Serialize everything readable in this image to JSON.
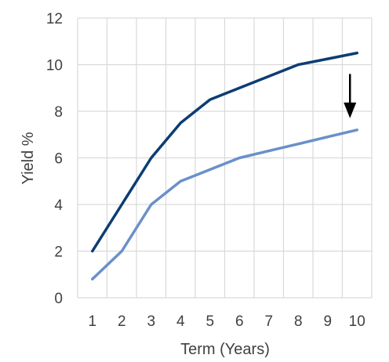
{
  "chart_data": {
    "type": "line",
    "x": [
      1,
      2,
      3,
      4,
      5,
      6,
      7,
      8,
      9,
      10
    ],
    "xlabel": "Term (Years)",
    "ylabel": "Yield %",
    "xlim": [
      0.5,
      10.5
    ],
    "ylim": [
      0,
      12
    ],
    "y_ticks": [
      "0",
      "2",
      "4",
      "6",
      "8",
      "10",
      "12"
    ],
    "x_ticks": [
      "1",
      "2",
      "3",
      "4",
      "5",
      "6",
      "7",
      "8",
      "9",
      "10"
    ],
    "grid": "both",
    "series": [
      {
        "values": [
          2.0,
          4.0,
          6.0,
          7.5,
          8.5,
          9.0,
          9.5,
          10.0,
          10.25,
          10.5
        ],
        "color": "#0b3d73"
      },
      {
        "values": [
          0.8,
          2.0,
          4.0,
          5.0,
          5.5,
          6.0,
          6.3,
          6.6,
          6.9,
          7.2
        ],
        "color": "#6a90c9"
      }
    ],
    "annotation": {
      "type": "down-arrow",
      "x": 10,
      "y_from": 9.6,
      "y_to": 7.7,
      "color": "#000000"
    }
  }
}
